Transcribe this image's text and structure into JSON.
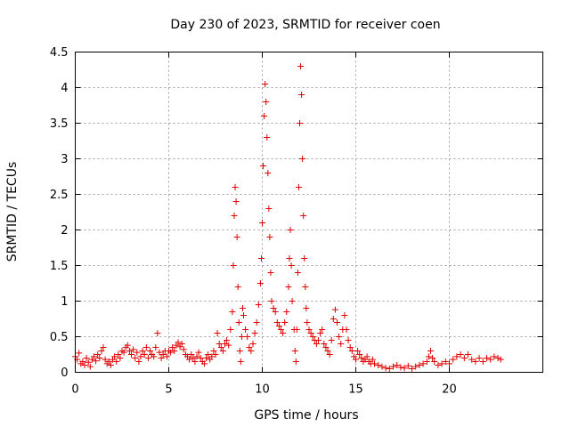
{
  "chart_data": {
    "type": "scatter",
    "title": "Day 230 of 2023, SRMTID for receiver coen",
    "xlabel": "GPS time / hours",
    "ylabel": "SRMTID / TECUs",
    "xlim": [
      0,
      25
    ],
    "ylim": [
      0,
      4.5
    ],
    "xticks": [
      0,
      5,
      10,
      15,
      20
    ],
    "xtick_labels": [
      "0",
      "5",
      "10",
      "15",
      "20"
    ],
    "yticks": [
      0,
      0.5,
      1,
      1.5,
      2,
      2.5,
      3,
      3.5,
      4,
      4.5
    ],
    "ytick_labels": [
      "0",
      "0.5",
      "1",
      "1.5",
      "2",
      "2.5",
      "3",
      "3.5",
      "4",
      "4.5"
    ],
    "grid": true,
    "marker": "+",
    "color": "#e00000",
    "series": [
      {
        "name": "SRMTID",
        "points": [
          [
            0.0,
            0.22
          ],
          [
            0.1,
            0.18
          ],
          [
            0.2,
            0.27
          ],
          [
            0.3,
            0.12
          ],
          [
            0.4,
            0.15
          ],
          [
            0.5,
            0.1
          ],
          [
            0.6,
            0.2
          ],
          [
            0.7,
            0.14
          ],
          [
            0.8,
            0.08
          ],
          [
            0.9,
            0.18
          ],
          [
            1.0,
            0.22
          ],
          [
            1.1,
            0.16
          ],
          [
            1.2,
            0.25
          ],
          [
            1.3,
            0.2
          ],
          [
            1.4,
            0.3
          ],
          [
            1.5,
            0.35
          ],
          [
            1.6,
            0.18
          ],
          [
            1.7,
            0.12
          ],
          [
            1.8,
            0.15
          ],
          [
            1.9,
            0.1
          ],
          [
            2.0,
            0.18
          ],
          [
            2.1,
            0.22
          ],
          [
            2.2,
            0.15
          ],
          [
            2.3,
            0.25
          ],
          [
            2.4,
            0.2
          ],
          [
            2.5,
            0.3
          ],
          [
            2.6,
            0.28
          ],
          [
            2.7,
            0.35
          ],
          [
            2.8,
            0.38
          ],
          [
            2.9,
            0.3
          ],
          [
            3.0,
            0.25
          ],
          [
            3.1,
            0.32
          ],
          [
            3.2,
            0.2
          ],
          [
            3.3,
            0.28
          ],
          [
            3.4,
            0.15
          ],
          [
            3.5,
            0.22
          ],
          [
            3.6,
            0.3
          ],
          [
            3.7,
            0.25
          ],
          [
            3.8,
            0.35
          ],
          [
            3.9,
            0.2
          ],
          [
            4.0,
            0.3
          ],
          [
            4.1,
            0.25
          ],
          [
            4.2,
            0.22
          ],
          [
            4.3,
            0.35
          ],
          [
            4.4,
            0.55
          ],
          [
            4.5,
            0.28
          ],
          [
            4.6,
            0.2
          ],
          [
            4.7,
            0.25
          ],
          [
            4.8,
            0.3
          ],
          [
            4.9,
            0.22
          ],
          [
            5.0,
            0.3
          ],
          [
            5.1,
            0.28
          ],
          [
            5.2,
            0.35
          ],
          [
            5.3,
            0.3
          ],
          [
            5.4,
            0.38
          ],
          [
            5.5,
            0.42
          ],
          [
            5.6,
            0.36
          ],
          [
            5.7,
            0.4
          ],
          [
            5.8,
            0.32
          ],
          [
            5.9,
            0.25
          ],
          [
            6.0,
            0.22
          ],
          [
            6.1,
            0.18
          ],
          [
            6.2,
            0.25
          ],
          [
            6.3,
            0.2
          ],
          [
            6.4,
            0.15
          ],
          [
            6.5,
            0.22
          ],
          [
            6.6,
            0.28
          ],
          [
            6.7,
            0.2
          ],
          [
            6.8,
            0.15
          ],
          [
            6.9,
            0.12
          ],
          [
            7.0,
            0.2
          ],
          [
            7.1,
            0.25
          ],
          [
            7.2,
            0.18
          ],
          [
            7.3,
            0.22
          ],
          [
            7.4,
            0.3
          ],
          [
            7.5,
            0.25
          ],
          [
            7.6,
            0.55
          ],
          [
            7.7,
            0.4
          ],
          [
            7.8,
            0.35
          ],
          [
            7.9,
            0.3
          ],
          [
            8.0,
            0.4
          ],
          [
            8.1,
            0.45
          ],
          [
            8.2,
            0.38
          ],
          [
            8.3,
            0.6
          ],
          [
            8.4,
            0.85
          ],
          [
            8.45,
            1.5
          ],
          [
            8.5,
            2.2
          ],
          [
            8.55,
            2.6
          ],
          [
            8.6,
            2.4
          ],
          [
            8.65,
            1.9
          ],
          [
            8.7,
            1.2
          ],
          [
            8.75,
            0.7
          ],
          [
            8.8,
            0.3
          ],
          [
            8.85,
            0.15
          ],
          [
            8.9,
            0.5
          ],
          [
            8.95,
            0.9
          ],
          [
            9.0,
            0.8
          ],
          [
            9.1,
            0.6
          ],
          [
            9.2,
            0.5
          ],
          [
            9.3,
            0.35
          ],
          [
            9.4,
            0.3
          ],
          [
            9.5,
            0.4
          ],
          [
            9.6,
            0.55
          ],
          [
            9.7,
            0.7
          ],
          [
            9.8,
            0.95
          ],
          [
            9.9,
            1.25
          ],
          [
            9.95,
            1.6
          ],
          [
            10.0,
            2.1
          ],
          [
            10.05,
            2.9
          ],
          [
            10.1,
            3.6
          ],
          [
            10.15,
            4.05
          ],
          [
            10.2,
            3.8
          ],
          [
            10.25,
            3.3
          ],
          [
            10.3,
            2.8
          ],
          [
            10.35,
            2.3
          ],
          [
            10.4,
            1.9
          ],
          [
            10.45,
            1.4
          ],
          [
            10.5,
            1.0
          ],
          [
            10.6,
            0.9
          ],
          [
            10.7,
            0.85
          ],
          [
            10.8,
            0.7
          ],
          [
            10.9,
            0.65
          ],
          [
            11.0,
            0.6
          ],
          [
            11.1,
            0.55
          ],
          [
            11.2,
            0.7
          ],
          [
            11.3,
            0.85
          ],
          [
            11.4,
            1.2
          ],
          [
            11.45,
            1.6
          ],
          [
            11.5,
            2.0
          ],
          [
            11.55,
            1.5
          ],
          [
            11.6,
            1.0
          ],
          [
            11.7,
            0.6
          ],
          [
            11.75,
            0.3
          ],
          [
            11.8,
            0.15
          ],
          [
            11.85,
            0.6
          ],
          [
            11.9,
            1.4
          ],
          [
            11.95,
            2.6
          ],
          [
            12.0,
            3.5
          ],
          [
            12.05,
            4.3
          ],
          [
            12.1,
            3.9
          ],
          [
            12.15,
            3.0
          ],
          [
            12.2,
            2.2
          ],
          [
            12.25,
            1.6
          ],
          [
            12.3,
            1.2
          ],
          [
            12.35,
            0.9
          ],
          [
            12.4,
            0.7
          ],
          [
            12.5,
            0.6
          ],
          [
            12.6,
            0.55
          ],
          [
            12.7,
            0.5
          ],
          [
            12.8,
            0.45
          ],
          [
            12.9,
            0.4
          ],
          [
            13.0,
            0.45
          ],
          [
            13.1,
            0.55
          ],
          [
            13.2,
            0.6
          ],
          [
            13.3,
            0.4
          ],
          [
            13.4,
            0.35
          ],
          [
            13.5,
            0.3
          ],
          [
            13.6,
            0.25
          ],
          [
            13.7,
            0.45
          ],
          [
            13.8,
            0.75
          ],
          [
            13.9,
            0.88
          ],
          [
            14.0,
            0.7
          ],
          [
            14.1,
            0.5
          ],
          [
            14.2,
            0.4
          ],
          [
            14.3,
            0.6
          ],
          [
            14.4,
            0.8
          ],
          [
            14.5,
            0.6
          ],
          [
            14.6,
            0.45
          ],
          [
            14.7,
            0.35
          ],
          [
            14.8,
            0.3
          ],
          [
            14.9,
            0.22
          ],
          [
            15.0,
            0.18
          ],
          [
            15.1,
            0.3
          ],
          [
            15.2,
            0.25
          ],
          [
            15.3,
            0.2
          ],
          [
            15.4,
            0.15
          ],
          [
            15.5,
            0.18
          ],
          [
            15.6,
            0.22
          ],
          [
            15.7,
            0.15
          ],
          [
            15.8,
            0.12
          ],
          [
            15.9,
            0.18
          ],
          [
            16.0,
            0.12
          ],
          [
            16.2,
            0.1
          ],
          [
            16.4,
            0.08
          ],
          [
            16.6,
            0.06
          ],
          [
            16.8,
            0.05
          ],
          [
            17.0,
            0.08
          ],
          [
            17.2,
            0.1
          ],
          [
            17.4,
            0.07
          ],
          [
            17.6,
            0.06
          ],
          [
            17.8,
            0.09
          ],
          [
            18.0,
            0.05
          ],
          [
            18.2,
            0.08
          ],
          [
            18.4,
            0.1
          ],
          [
            18.6,
            0.12
          ],
          [
            18.8,
            0.15
          ],
          [
            18.9,
            0.22
          ],
          [
            19.0,
            0.3
          ],
          [
            19.1,
            0.2
          ],
          [
            19.2,
            0.15
          ],
          [
            19.4,
            0.1
          ],
          [
            19.6,
            0.12
          ],
          [
            19.8,
            0.15
          ],
          [
            20.0,
            0.12
          ],
          [
            20.2,
            0.18
          ],
          [
            20.4,
            0.22
          ],
          [
            20.6,
            0.25
          ],
          [
            20.8,
            0.2
          ],
          [
            21.0,
            0.25
          ],
          [
            21.2,
            0.18
          ],
          [
            21.4,
            0.15
          ],
          [
            21.6,
            0.2
          ],
          [
            21.8,
            0.15
          ],
          [
            22.0,
            0.2
          ],
          [
            22.2,
            0.18
          ],
          [
            22.4,
            0.22
          ],
          [
            22.6,
            0.2
          ],
          [
            22.75,
            0.18
          ]
        ]
      }
    ]
  }
}
